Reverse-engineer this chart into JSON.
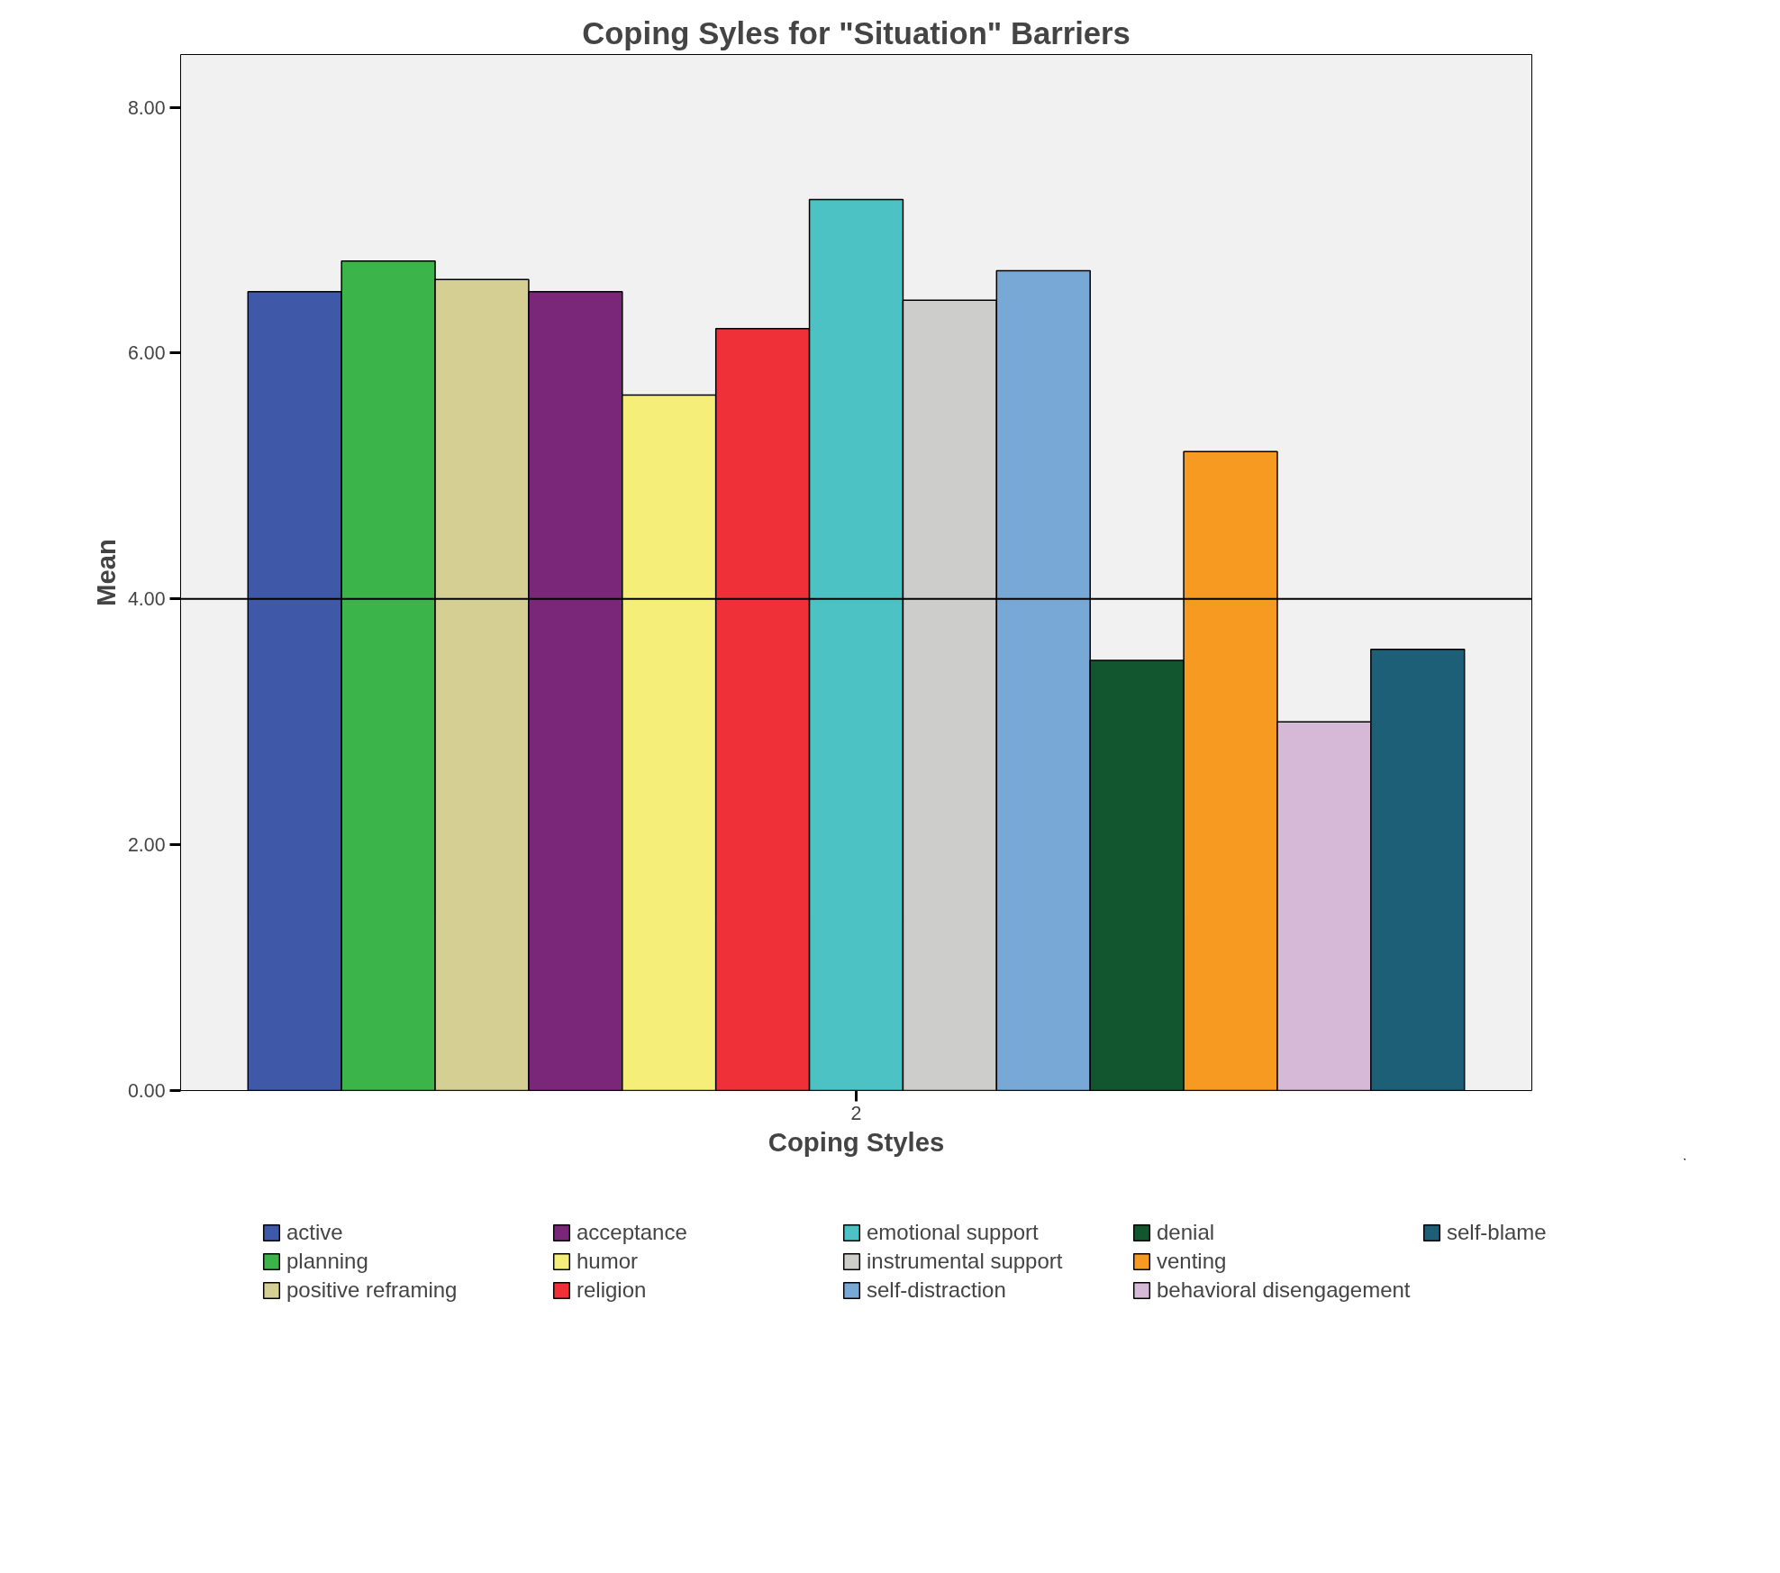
{
  "chart_data": {
    "type": "bar",
    "title": "Coping Syles for \"Situation\" Barriers",
    "xlabel": "Coping Styles",
    "ylabel": "Mean",
    "categories": [
      "2"
    ],
    "series": [
      {
        "name": "active",
        "color": "#3f59a8",
        "values": [
          6.5
        ]
      },
      {
        "name": "planning",
        "color": "#3bb44a",
        "values": [
          6.75
        ]
      },
      {
        "name": "positive reframing",
        "color": "#d5cf94",
        "values": [
          6.6
        ]
      },
      {
        "name": "acceptance",
        "color": "#7b2779",
        "values": [
          6.5
        ]
      },
      {
        "name": "humor",
        "color": "#f5ef7a",
        "values": [
          5.66
        ]
      },
      {
        "name": "religion",
        "color": "#ef3038",
        "values": [
          6.2
        ]
      },
      {
        "name": "emotional support",
        "color": "#4cc2c4",
        "values": [
          7.25
        ]
      },
      {
        "name": "instrumental support",
        "color": "#cdcdcb",
        "values": [
          6.43
        ]
      },
      {
        "name": "self-distraction",
        "color": "#78a9d6",
        "values": [
          6.67
        ]
      },
      {
        "name": "denial",
        "color": "#11562e",
        "values": [
          3.5
        ]
      },
      {
        "name": "venting",
        "color": "#f69a22",
        "values": [
          5.2
        ]
      },
      {
        "name": "behavioral disengagement",
        "color": "#d5b9d7",
        "values": [
          3.0
        ]
      },
      {
        "name": "self-blame",
        "color": "#1d5f77",
        "values": [
          3.59
        ]
      }
    ],
    "ylim": [
      0,
      8.43
    ],
    "yticks": [
      {
        "value": 0,
        "label": "0.00"
      },
      {
        "value": 2,
        "label": "2.00"
      },
      {
        "value": 4,
        "label": "4.00"
      },
      {
        "value": 6,
        "label": "6.00"
      },
      {
        "value": 8,
        "label": "8.00"
      }
    ],
    "ref_lines": [
      {
        "axis": "y",
        "value": 4,
        "label": null,
        "color": "#000000"
      }
    ],
    "grid": false,
    "legend": "bottom"
  }
}
